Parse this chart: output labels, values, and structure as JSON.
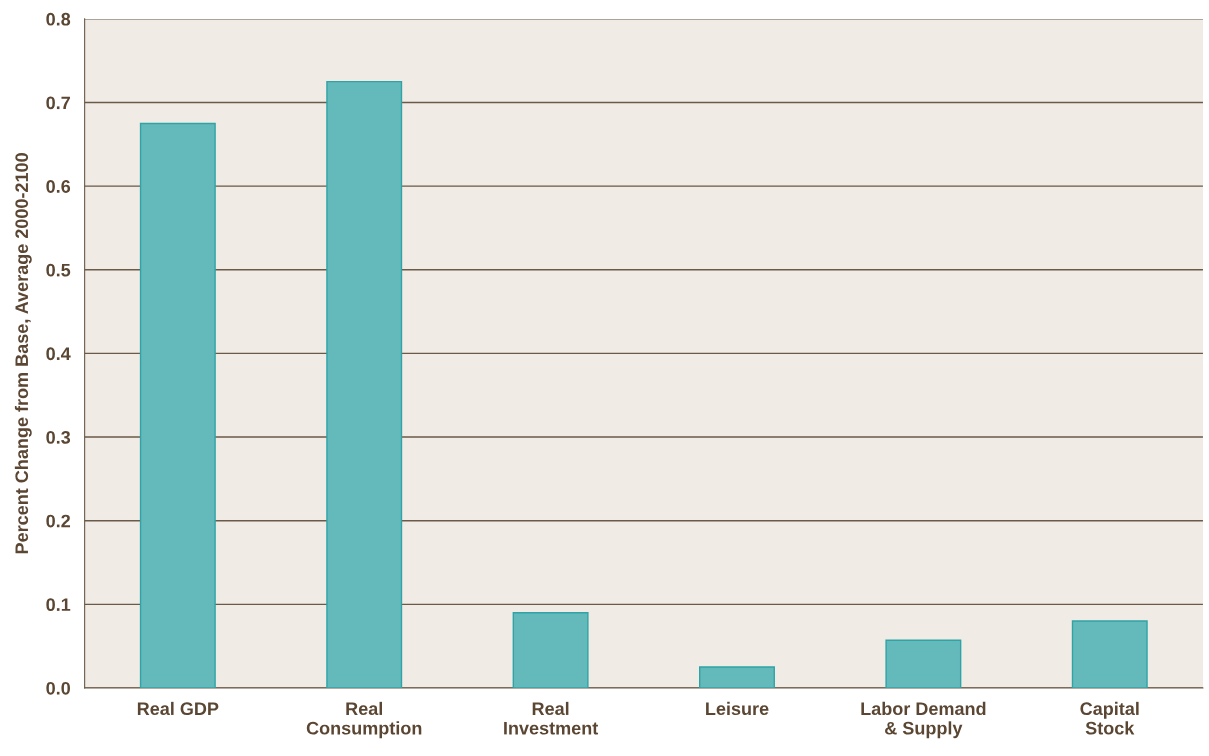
{
  "chart_data": {
    "type": "bar",
    "ylabel": "Percent Change from Base, Average 2000-2100",
    "categories": [
      "Real GDP",
      "Real\nConsumption",
      "Real\nInvestment",
      "Leisure",
      "Labor Demand\n& Supply",
      "Capital\nStock"
    ],
    "values": [
      0.675,
      0.725,
      0.09,
      0.025,
      0.057,
      0.08
    ],
    "color": "#64b9bb",
    "ylim": [
      0,
      0.8
    ],
    "yticks": [
      {
        "value": 0,
        "label": "0.0"
      },
      0.1,
      0.2,
      0.3,
      0.4,
      0.5,
      0.6,
      0.7,
      0.8
    ],
    "grid": "y",
    "legend": false
  }
}
